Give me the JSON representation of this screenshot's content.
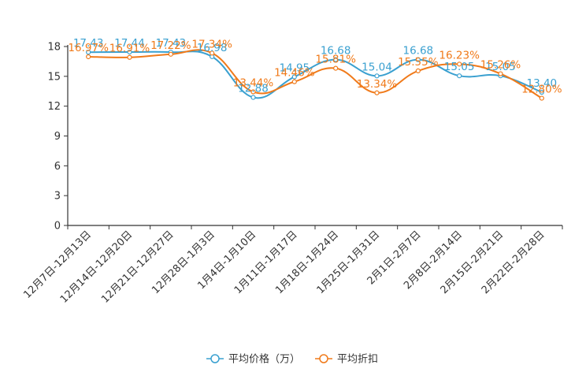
{
  "chart_data": {
    "type": "line",
    "categories": [
      "12月7日-12月13日",
      "12月14日-12月20日",
      "12月21日-12月27日",
      "12月28日-1月3日",
      "1月4日-1月10日",
      "1月11日-1月17日",
      "1月18日-1月24日",
      "1月25日-1月31日",
      "2月1日-2月7日",
      "2月8日-2月14日",
      "2月15日-2月21日",
      "2月22日-2月28日"
    ],
    "ylim": [
      0,
      18
    ],
    "yticks": [
      "0",
      "3",
      "6",
      "9",
      "12",
      "15",
      "18"
    ],
    "series": [
      {
        "name": "平均价格（万）",
        "color": "#3aa0d0",
        "values": [
          17.43,
          17.44,
          17.43,
          16.98,
          12.88,
          14.95,
          16.68,
          15.04,
          16.68,
          15.05,
          15.05,
          13.4
        ],
        "labels": [
          "17.43",
          "17.44",
          "17.43",
          "16.98",
          "12.88",
          "14.95",
          "16.68",
          "15.04",
          "16.68",
          "15.05",
          "15.05",
          "13.40"
        ]
      },
      {
        "name": "平均折扣",
        "color": "#f07a1a",
        "values": [
          16.97,
          16.91,
          17.22,
          17.34,
          13.44,
          14.46,
          15.81,
          13.34,
          15.55,
          16.23,
          15.26,
          12.8
        ],
        "labels": [
          "16.97%",
          "16.91%",
          "17.22%",
          "17.34%",
          "13.44%",
          "14.46%",
          "15.81%",
          "13.34%",
          "15.55%",
          "16.23%",
          "15.26%",
          "12.80%"
        ]
      }
    ]
  }
}
